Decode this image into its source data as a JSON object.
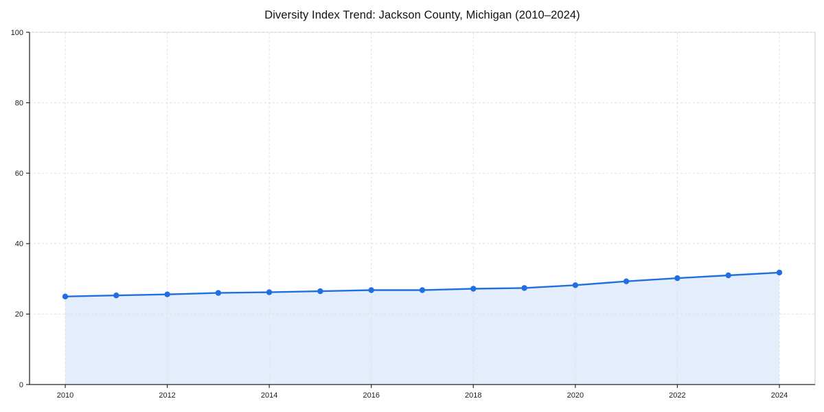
{
  "chart_data": {
    "type": "area",
    "title": "Diversity Index Trend: Jackson County, Michigan (2010–2024)",
    "xlabel": "",
    "ylabel": "",
    "x": [
      2010,
      2011,
      2012,
      2013,
      2014,
      2015,
      2016,
      2017,
      2018,
      2019,
      2020,
      2021,
      2022,
      2023,
      2024
    ],
    "series": [
      {
        "name": "Diversity Index",
        "values": [
          25.0,
          25.3,
          25.6,
          26.0,
          26.2,
          26.5,
          26.8,
          26.8,
          27.2,
          27.4,
          28.2,
          29.3,
          30.2,
          31.0,
          31.8
        ]
      }
    ],
    "xlim": [
      2009.3,
      2024.7
    ],
    "ylim": [
      0,
      100
    ],
    "xticks": [
      2010,
      2012,
      2014,
      2016,
      2018,
      2020,
      2022,
      2024
    ],
    "yticks": [
      0,
      20,
      40,
      60,
      80,
      100
    ],
    "grid": true,
    "grid_style": "dashed",
    "legend": "none",
    "colors": {
      "line": "#1f6fe0",
      "fill_opacity": "0.12",
      "grid": "#dfdfdf",
      "border": "#c9c9c9",
      "axis": "#262626",
      "text": "#1a1a1a"
    }
  }
}
